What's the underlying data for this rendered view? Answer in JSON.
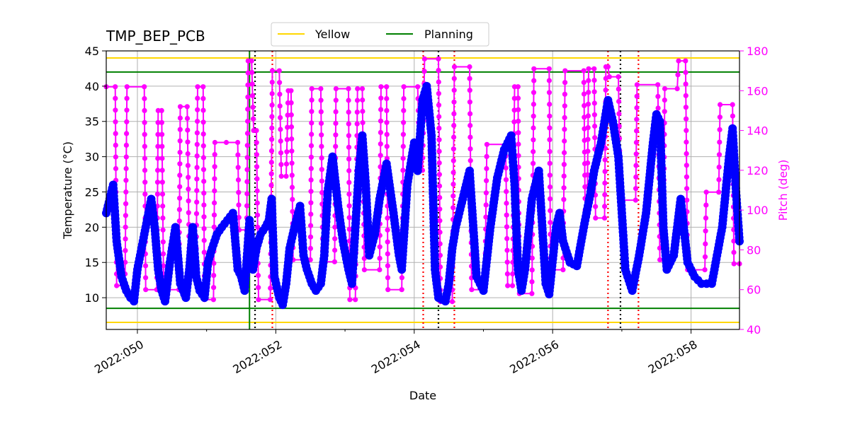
{
  "chart_data": {
    "type": "line",
    "title": "TMP_BEP_PCB",
    "xlabel": "Date",
    "ylabel": "Temperature ($^\\circ$C)",
    "ylabel_display": "Temperature (°C)",
    "y2label": "Pitch (deg)",
    "x_unit": "day of year 2022",
    "xlim": [
      49.55,
      58.7
    ],
    "ylim": [
      5.5,
      45
    ],
    "y2lim": [
      40,
      180
    ],
    "xticks": [
      {
        "value": 50,
        "label": "2022:050"
      },
      {
        "value": 52,
        "label": "2022:052"
      },
      {
        "value": 54,
        "label": "2022:054"
      },
      {
        "value": 56,
        "label": "2022:056"
      },
      {
        "value": 58,
        "label": "2022:058"
      }
    ],
    "yticks": [
      10,
      15,
      20,
      25,
      30,
      35,
      40,
      45
    ],
    "y2ticks": [
      40,
      60,
      80,
      100,
      120,
      140,
      160,
      180
    ],
    "grid": true,
    "legend": {
      "placement": "top-center",
      "entries": [
        {
          "label": "Yellow",
          "color": "#ffd700"
        },
        {
          "label": "Planning",
          "color": "#008000"
        }
      ]
    },
    "limit_lines": [
      {
        "name": "yellow-high",
        "y": 44,
        "color": "#ffd700"
      },
      {
        "name": "yellow-low",
        "y": 6.5,
        "color": "#ffd700"
      },
      {
        "name": "planning-high",
        "y": 42,
        "color": "#008000"
      },
      {
        "name": "planning-low",
        "y": 8.5,
        "color": "#008000"
      }
    ],
    "vertical_lines": [
      {
        "x": 51.62,
        "color": "#008000",
        "style": "solid"
      },
      {
        "x": 51.7,
        "color": "#000000",
        "style": "dotted"
      },
      {
        "x": 51.95,
        "color": "#ff0000",
        "style": "dotted"
      },
      {
        "x": 54.13,
        "color": "#ff0000",
        "style": "dotted"
      },
      {
        "x": 54.35,
        "color": "#000000",
        "style": "dotted"
      },
      {
        "x": 54.58,
        "color": "#ff0000",
        "style": "dotted"
      },
      {
        "x": 56.8,
        "color": "#ff0000",
        "style": "dotted"
      },
      {
        "x": 56.98,
        "color": "#000000",
        "style": "dotted"
      },
      {
        "x": 57.24,
        "color": "#ff0000",
        "style": "dotted"
      }
    ],
    "series": [
      {
        "name": "TMP_BEP_PCB",
        "axis": "left",
        "color": "#0000ff",
        "x": [
          49.55,
          49.6,
          49.65,
          49.7,
          49.77,
          49.84,
          49.9,
          49.95,
          50.0,
          50.1,
          50.2,
          50.25,
          50.3,
          50.35,
          50.4,
          50.47,
          50.55,
          50.62,
          50.7,
          50.75,
          50.8,
          50.85,
          50.9,
          50.97,
          51.02,
          51.08,
          51.15,
          51.22,
          51.3,
          51.38,
          51.45,
          51.5,
          51.55,
          51.62,
          51.67,
          51.72,
          51.78,
          51.85,
          51.9,
          51.94,
          51.98,
          52.05,
          52.1,
          52.15,
          52.2,
          52.27,
          52.35,
          52.4,
          52.45,
          52.52,
          52.58,
          52.65,
          52.7,
          52.75,
          52.82,
          52.9,
          52.97,
          53.05,
          53.1,
          53.15,
          53.2,
          53.25,
          53.3,
          53.35,
          53.43,
          53.5,
          53.6,
          53.7,
          53.78,
          53.82,
          53.9,
          54.0,
          54.05,
          54.12,
          54.18,
          54.25,
          54.3,
          54.35,
          54.45,
          54.5,
          54.55,
          54.6,
          54.7,
          54.8,
          54.9,
          55.0,
          55.1,
          55.2,
          55.3,
          55.4,
          55.45,
          55.5,
          55.55,
          55.6,
          55.7,
          55.8,
          55.9,
          55.95,
          56.05,
          56.1,
          56.15,
          56.25,
          56.35,
          56.45,
          56.55,
          56.6,
          56.7,
          56.8,
          56.87,
          56.95,
          57.0,
          57.05,
          57.15,
          57.25,
          57.35,
          57.45,
          57.5,
          57.55,
          57.6,
          57.65,
          57.75,
          57.85,
          57.95,
          58.05,
          58.15,
          58.3,
          58.45,
          58.55,
          58.6,
          58.65,
          58.7
        ],
        "values": [
          22,
          24,
          26,
          18,
          13,
          11,
          10,
          9.5,
          14,
          19,
          24,
          20,
          14,
          11,
          9.5,
          15,
          20,
          12,
          10,
          14,
          20,
          13,
          11,
          10,
          15,
          17,
          19,
          20,
          21,
          22,
          14,
          13,
          11,
          21,
          14,
          17,
          19,
          20,
          21,
          24,
          13,
          10,
          9,
          12,
          17,
          20,
          23,
          16,
          14,
          12,
          11,
          12,
          16,
          25,
          30,
          23,
          18,
          14,
          12,
          20,
          28,
          33,
          26,
          16,
          19,
          24,
          29,
          22,
          16,
          14,
          26,
          32,
          28,
          38,
          40,
          33,
          14,
          10,
          9.5,
          12,
          17,
          20,
          24,
          28,
          13,
          11,
          20,
          27,
          31,
          33,
          26,
          14,
          11,
          14,
          24,
          28,
          12,
          10.5,
          20,
          22,
          18,
          15,
          14.5,
          20,
          25,
          28,
          32,
          38,
          35,
          30,
          22,
          14,
          11,
          16,
          22,
          32,
          36,
          35,
          20,
          14,
          16,
          24,
          15,
          13,
          12,
          12,
          20,
          30,
          34,
          25,
          18
        ]
      },
      {
        "name": "Pitch",
        "axis": "right",
        "color": "#ff00ff",
        "x": [
          49.55,
          49.68,
          49.7,
          49.82,
          49.85,
          50.1,
          50.12,
          50.28,
          50.3,
          50.35,
          50.38,
          50.6,
          50.62,
          50.72,
          50.75,
          50.85,
          50.87,
          50.95,
          50.97,
          51.1,
          51.12,
          51.45,
          51.47,
          51.58,
          51.6,
          51.65,
          51.68,
          51.72,
          51.75,
          51.92,
          51.95,
          52.05,
          52.08,
          52.15,
          52.18,
          52.22,
          52.25,
          52.5,
          52.52,
          52.65,
          52.68,
          52.85,
          52.87,
          53.05,
          53.07,
          53.15,
          53.18,
          53.25,
          53.28,
          53.5,
          53.52,
          53.6,
          53.62,
          53.82,
          53.85,
          54.05,
          54.08,
          54.12,
          54.15,
          54.35,
          54.38,
          54.55,
          54.58,
          54.8,
          54.83,
          55.02,
          55.05,
          55.32,
          55.35,
          55.42,
          55.45,
          55.5,
          55.52,
          55.7,
          55.73,
          55.95,
          55.97,
          56.15,
          56.18,
          56.45,
          56.47,
          56.5,
          56.52,
          56.6,
          56.62,
          56.75,
          56.77,
          56.8,
          56.82,
          56.95,
          56.98,
          57.2,
          57.22,
          57.52,
          57.55,
          57.6,
          57.62,
          57.8,
          57.82,
          57.92,
          57.95,
          58.2,
          58.22,
          58.4,
          58.42,
          58.6,
          58.62,
          58.7
        ],
        "values": [
          162,
          162,
          62,
          62,
          162,
          162,
          60,
          60,
          150,
          150,
          60,
          60,
          152,
          152,
          75,
          75,
          162,
          162,
          55,
          55,
          134,
          134,
          90,
          90,
          175,
          175,
          140,
          140,
          55,
          55,
          170,
          170,
          117,
          117,
          160,
          160,
          75,
          75,
          161,
          161,
          74,
          74,
          161,
          161,
          55,
          55,
          161,
          161,
          70,
          70,
          162,
          162,
          60,
          60,
          162,
          162,
          120,
          120,
          176,
          176,
          54,
          54,
          172,
          172,
          60,
          60,
          133,
          133,
          62,
          62,
          162,
          162,
          58,
          58,
          171,
          171,
          70,
          70,
          170,
          170,
          100,
          100,
          171,
          171,
          96,
          96,
          172,
          172,
          167,
          167,
          105,
          105,
          163,
          163,
          75,
          75,
          161,
          161,
          175,
          175,
          70,
          70,
          109,
          109,
          153,
          153,
          73,
          73
        ]
      }
    ]
  }
}
